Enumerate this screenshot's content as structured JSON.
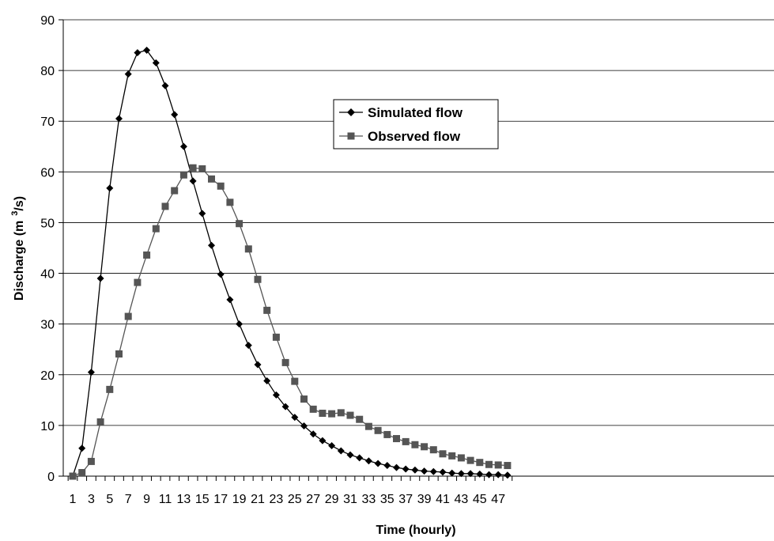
{
  "chart_data": {
    "type": "line",
    "title": "",
    "xlabel": "Time (hourly)",
    "ylabel_prefix": "Discharge (m",
    "ylabel_sup": "3",
    "ylabel_suffix": "/s)",
    "x": [
      1,
      2,
      3,
      4,
      5,
      6,
      7,
      8,
      9,
      10,
      11,
      12,
      13,
      14,
      15,
      16,
      17,
      18,
      19,
      20,
      21,
      22,
      23,
      24,
      25,
      26,
      27,
      28,
      29,
      30,
      31,
      32,
      33,
      34,
      35,
      36,
      37,
      38,
      39,
      40,
      41,
      42,
      43,
      44,
      45,
      46,
      47,
      48
    ],
    "x_tick_labels": [
      "1",
      "3",
      "5",
      "7",
      "9",
      "11",
      "13",
      "15",
      "17",
      "19",
      "21",
      "23",
      "25",
      "27",
      "29",
      "31",
      "33",
      "35",
      "37",
      "39",
      "41",
      "43",
      "45",
      "47"
    ],
    "ylim": [
      0,
      90
    ],
    "y_tick_labels": [
      "0",
      "10",
      "20",
      "30",
      "40",
      "50",
      "60",
      "70",
      "80",
      "90"
    ],
    "grid": "horizontal",
    "legend_position": "top-center",
    "series": [
      {
        "name": "Simulated flow",
        "marker": "diamond",
        "color": "#000000",
        "values": [
          0,
          5.5,
          20.5,
          39,
          56.8,
          70.5,
          79.3,
          83.5,
          84,
          81.5,
          77,
          71.3,
          65,
          58.2,
          51.8,
          45.5,
          39.8,
          34.8,
          30,
          25.8,
          22,
          18.8,
          16,
          13.7,
          11.6,
          9.9,
          8.3,
          7,
          6,
          5,
          4.2,
          3.6,
          3,
          2.5,
          2.1,
          1.7,
          1.4,
          1.2,
          1,
          0.9,
          0.8,
          0.6,
          0.5,
          0.5,
          0.4,
          0.3,
          0.3,
          0.2
        ]
      },
      {
        "name": "Observed flow",
        "marker": "square",
        "color": "#555555",
        "values": [
          0,
          0.7,
          2.9,
          10.7,
          17.1,
          24.1,
          31.5,
          38.2,
          43.6,
          48.8,
          53.2,
          56.3,
          59.4,
          60.8,
          60.6,
          58.6,
          57.2,
          54,
          49.8,
          44.8,
          38.8,
          32.7,
          27.4,
          22.4,
          18.7,
          15.2,
          13.2,
          12.4,
          12.3,
          12.5,
          12,
          11.2,
          9.8,
          9,
          8.2,
          7.4,
          6.8,
          6.2,
          5.8,
          5.2,
          4.4,
          4,
          3.6,
          3.1,
          2.7,
          2.3,
          2.2,
          2.1
        ]
      }
    ]
  }
}
